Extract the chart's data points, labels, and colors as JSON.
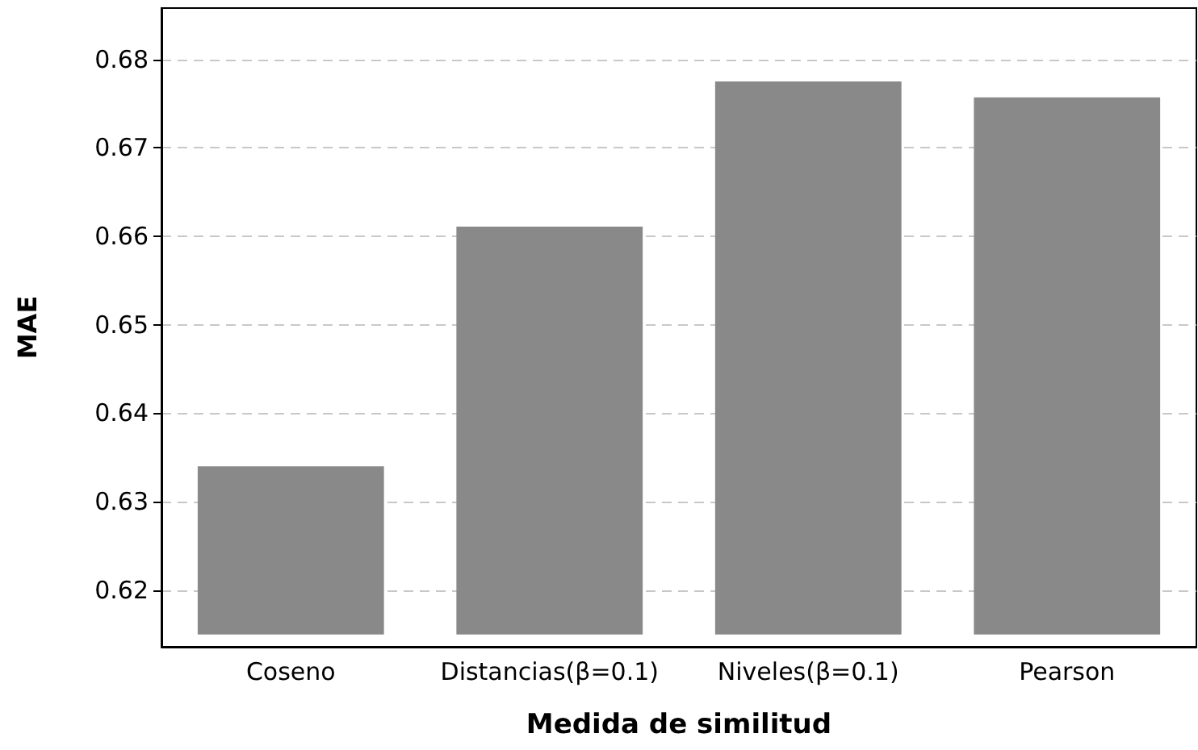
{
  "chart_data": {
    "type": "bar",
    "xlabel": "Medida de similitud",
    "ylabel": "MAE",
    "categories": [
      "Coseno",
      "Distancias(β=0.1)",
      "Niveles(β=0.1)",
      "Pearson"
    ],
    "base": [
      0.615,
      0.615,
      0.615,
      0.615
    ],
    "values": [
      0.019,
      0.0461,
      0.0625,
      0.0607
    ],
    "color": "#898989",
    "ylim": [
      0.6136,
      0.6858
    ],
    "yticks": [
      0.62,
      0.63,
      0.64,
      0.65,
      0.66,
      0.67,
      0.68
    ],
    "grid": "y"
  }
}
